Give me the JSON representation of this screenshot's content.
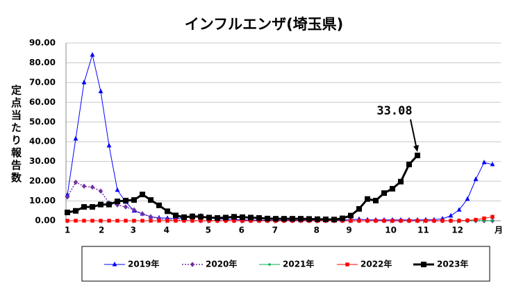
{
  "chart_data": {
    "type": "line",
    "title": "インフルエンザ(埼玉県)",
    "y_label": "定点当たり報告数",
    "x_label": "月",
    "annotation": "33.08",
    "x": [
      1,
      2,
      3,
      4,
      5,
      6,
      7,
      8,
      9,
      10,
      11,
      12,
      13,
      14,
      15,
      16,
      17,
      18,
      19,
      20,
      21,
      22,
      23,
      24,
      25,
      26,
      27,
      28,
      29,
      30,
      31,
      32,
      33,
      34,
      35,
      36,
      37,
      38,
      39,
      40,
      41,
      42,
      43,
      44,
      45,
      46,
      47,
      48,
      49,
      50,
      51,
      52
    ],
    "xlim": [
      1,
      53
    ],
    "xticks": [
      {
        "value": 1,
        "label": "1"
      },
      {
        "value": 5.1,
        "label": "2"
      },
      {
        "value": 8.9,
        "label": "3"
      },
      {
        "value": 12.9,
        "label": "4"
      },
      {
        "value": 17.9,
        "label": "5"
      },
      {
        "value": 21.9,
        "label": "6"
      },
      {
        "value": 25.9,
        "label": "7"
      },
      {
        "value": 30.9,
        "label": "8"
      },
      {
        "value": 34.8,
        "label": "9"
      },
      {
        "value": 39.8,
        "label": "10"
      },
      {
        "value": 43.7,
        "label": "11"
      },
      {
        "value": 47.8,
        "label": "12"
      }
    ],
    "ylim": [
      0,
      90
    ],
    "yticks": [
      {
        "value": 0,
        "label": "0.00"
      },
      {
        "value": 10,
        "label": "10.00"
      },
      {
        "value": 20,
        "label": "20.00"
      },
      {
        "value": 30,
        "label": "30.00"
      },
      {
        "value": 40,
        "label": "40.00"
      },
      {
        "value": 50,
        "label": "50.00"
      },
      {
        "value": 60,
        "label": "60.00"
      },
      {
        "value": 70,
        "label": "70.00"
      },
      {
        "value": 80,
        "label": "80.00"
      },
      {
        "value": 90,
        "label": "90.00"
      }
    ],
    "grid": true,
    "legend": "bottom",
    "series": [
      {
        "name": "2019年",
        "color": "#0000ff",
        "marker": "triangle",
        "dash": "solid",
        "width": 1,
        "values": [
          13,
          41.5,
          70,
          84,
          65.5,
          38,
          15.5,
          9.5,
          5,
          3.5,
          2,
          1.5,
          1.3,
          1,
          1.5,
          2.5,
          2.5,
          1.5,
          1,
          0.8,
          0.6,
          0.4,
          0.3,
          0.3,
          0.2,
          0.2,
          0.2,
          0.2,
          0.2,
          0.2,
          0.2,
          0.2,
          0.3,
          0.4,
          0.5,
          0.8,
          0.5,
          0.4,
          0.4,
          0.4,
          0.4,
          0.4,
          0.4,
          0.5,
          0.5,
          1,
          2.5,
          5.5,
          11,
          21,
          29.5,
          28.5
        ]
      },
      {
        "name": "2020年",
        "color": "#7030a0",
        "marker": "diamond",
        "dash": "dotted",
        "width": 1.5,
        "values": [
          12,
          19.5,
          17.5,
          17,
          15,
          9,
          8,
          7,
          5.5,
          3.5,
          2,
          1,
          0.5,
          0.3,
          0.2,
          0.1,
          0,
          0,
          0,
          0,
          0,
          0,
          0,
          0,
          0,
          0,
          0,
          0,
          0,
          0,
          0,
          0,
          0,
          0,
          0,
          0,
          0,
          0,
          0,
          0,
          0,
          0,
          0,
          0,
          0,
          0,
          0,
          0,
          0,
          0,
          0,
          0
        ]
      },
      {
        "name": "2021年",
        "color": "#00b050",
        "marker": "dot",
        "dash": "solid",
        "width": 1,
        "values": [
          0,
          0,
          0,
          0,
          0,
          0,
          0,
          0,
          0,
          0,
          0,
          0,
          0,
          0,
          0,
          0,
          0,
          0,
          0,
          0,
          0,
          0,
          0,
          0,
          0,
          0,
          0,
          0,
          0,
          0,
          0,
          0,
          0,
          0,
          0,
          0,
          0,
          0,
          0,
          0,
          0,
          0,
          0,
          0,
          0,
          0,
          0,
          0,
          0,
          0,
          0,
          0
        ]
      },
      {
        "name": "2022年",
        "color": "#ff0000",
        "marker": "square",
        "dash": "solid",
        "width": 1,
        "values": [
          0,
          0,
          0,
          0,
          0,
          0,
          0,
          0,
          0,
          0,
          0,
          0,
          0,
          0,
          0,
          0,
          0,
          0,
          0,
          0,
          0,
          0,
          0,
          0,
          0,
          0,
          0,
          0,
          0,
          0,
          0,
          0,
          0,
          0,
          0,
          0,
          0,
          0,
          0,
          0,
          0,
          0,
          0,
          0,
          0,
          0,
          0,
          0,
          0.2,
          0.5,
          1.2,
          2
        ]
      },
      {
        "name": "2023年",
        "color": "#000000",
        "marker": "square-large",
        "dash": "solid",
        "width": 3,
        "values": [
          4.2,
          5,
          7,
          7,
          8.2,
          8.2,
          9.8,
          10.2,
          10.5,
          13.3,
          10.5,
          7.8,
          4.8,
          2.7,
          1.8,
          2.2,
          2,
          1.6,
          1.4,
          1.6,
          2,
          1.8,
          1.6,
          1.4,
          1.1,
          1,
          1,
          1,
          1,
          0.9,
          0.8,
          0.7,
          0.6,
          1.2,
          2.6,
          6,
          11,
          10.2,
          14,
          16.2,
          19.8,
          28.5,
          33.08,
          null,
          null,
          null,
          null,
          null,
          null,
          null,
          null,
          null
        ]
      }
    ]
  }
}
